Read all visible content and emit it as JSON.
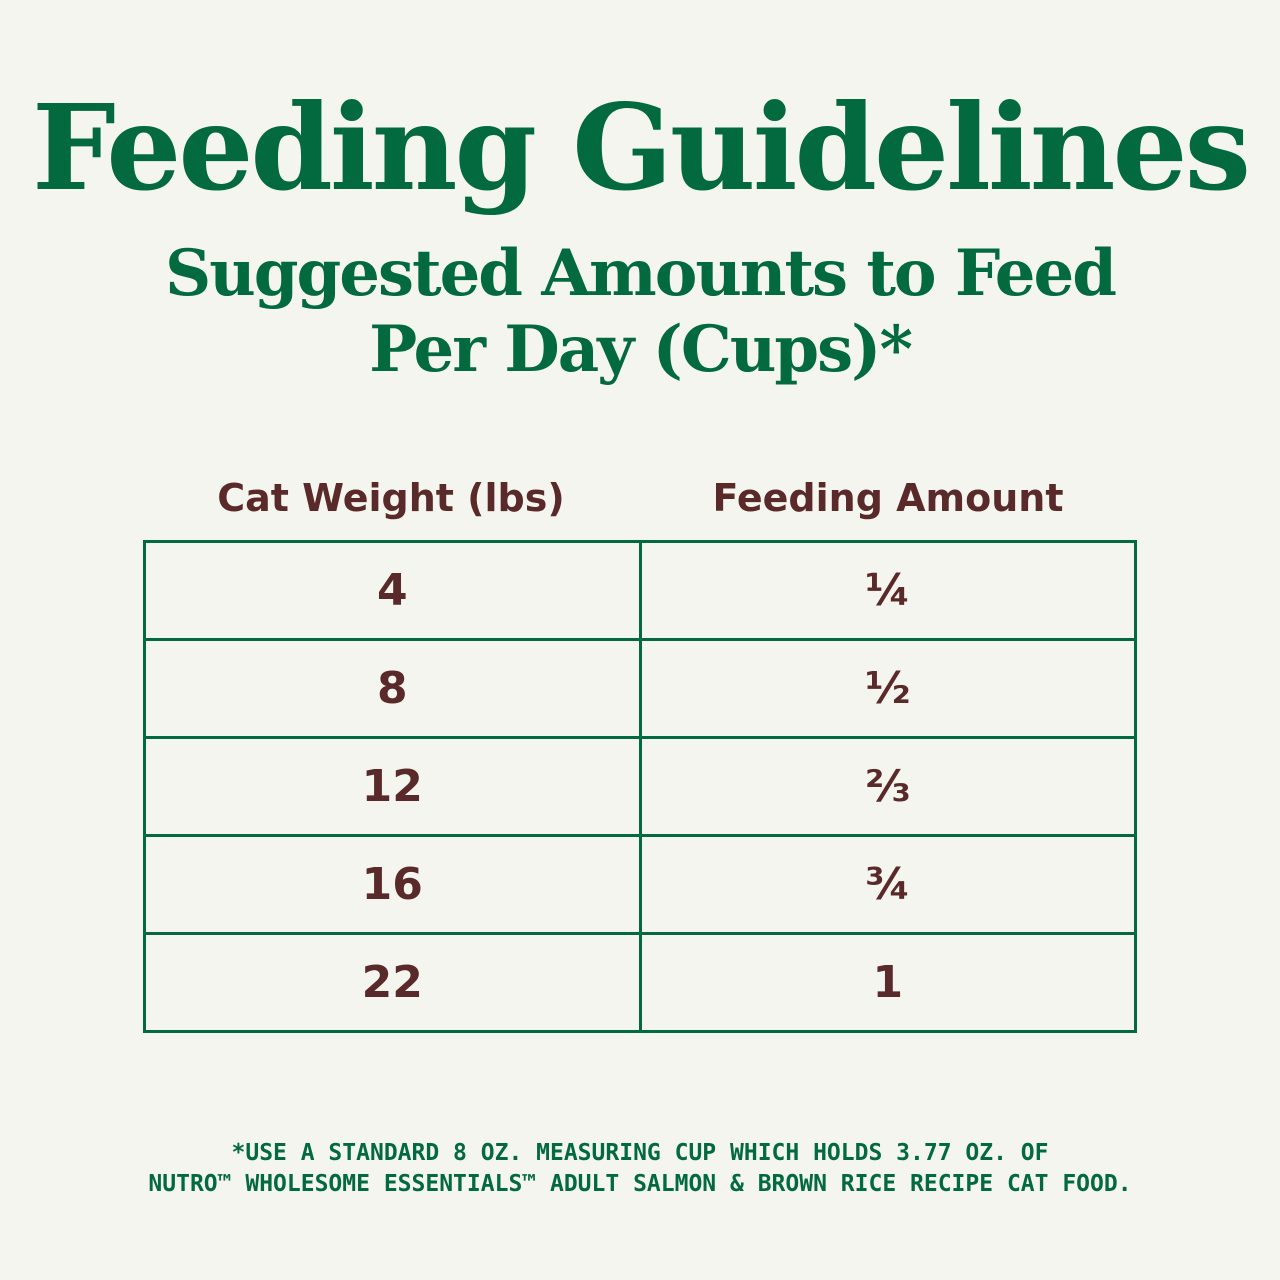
{
  "header": {
    "title": "Feeding Guidelines",
    "subtitle_lines": [
      "Suggested Amounts to Feed",
      "Per Day (Cups)*"
    ]
  },
  "table": {
    "columns": [
      "Cat Weight (lbs)",
      "Feeding Amount"
    ],
    "rows": [
      [
        "4",
        "¼"
      ],
      [
        "8",
        "½"
      ],
      [
        "12",
        "⅔"
      ],
      [
        "16",
        "¾"
      ],
      [
        "22",
        "1"
      ]
    ]
  },
  "footnote": {
    "lines": [
      "*USE A STANDARD 8 OZ. MEASURING CUP WHICH HOLDS 3.77 OZ. OF",
      "NUTRO™ WHOLESOME ESSENTIALS™ ADULT SALMON & BROWN RICE RECIPE CAT FOOD."
    ]
  }
}
